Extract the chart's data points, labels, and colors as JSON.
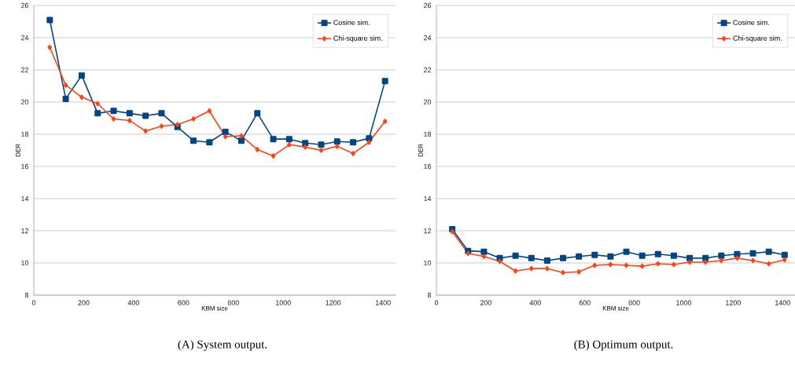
{
  "chart_data": [
    {
      "type": "line",
      "xlabel": "KBM size",
      "ylabel": "DER",
      "annotations": [
        "(A) System output."
      ],
      "x": [
        64,
        128,
        192,
        256,
        320,
        384,
        448,
        512,
        576,
        640,
        704,
        768,
        832,
        896,
        960,
        1024,
        1088,
        1152,
        1216,
        1280,
        1344,
        1408
      ],
      "series": [
        {
          "name": "Cosine sim.",
          "color": "#004586",
          "marker": "square",
          "values": [
            25.1,
            20.2,
            21.65,
            19.3,
            19.45,
            19.3,
            19.15,
            19.3,
            18.45,
            17.6,
            17.5,
            18.15,
            17.6,
            19.3,
            17.7,
            17.7,
            17.45,
            17.35,
            17.55,
            17.5,
            17.75,
            21.3
          ]
        },
        {
          "name": "Chi-square sim.",
          "color": "#ff420e",
          "marker": "diamond",
          "values": [
            23.4,
            21.05,
            20.3,
            19.9,
            18.95,
            18.85,
            18.2,
            18.5,
            18.6,
            18.95,
            19.45,
            17.85,
            17.9,
            17.05,
            16.65,
            17.35,
            17.2,
            17.0,
            17.25,
            16.8,
            17.5,
            18.8
          ]
        }
      ],
      "xlim": [
        0,
        1450
      ],
      "xticks": [
        0,
        200,
        400,
        600,
        800,
        1000,
        1200,
        1400
      ],
      "ylim": [
        8,
        26
      ],
      "yticks": [
        8,
        10,
        12,
        14,
        16,
        18,
        20,
        22,
        24,
        26
      ],
      "grid": "y",
      "legend": "top right",
      "line_style": "solid"
    },
    {
      "type": "line",
      "xlabel": "KBM size",
      "ylabel": "DER",
      "annotations": [
        "(B) Optimum output."
      ],
      "x": [
        64,
        128,
        192,
        256,
        320,
        384,
        448,
        512,
        576,
        640,
        704,
        768,
        832,
        896,
        960,
        1024,
        1088,
        1152,
        1216,
        1280,
        1344,
        1408
      ],
      "series": [
        {
          "name": "Cosine sim.",
          "color": "#004586",
          "marker": "square",
          "values": [
            12.1,
            10.75,
            10.7,
            10.3,
            10.45,
            10.3,
            10.15,
            10.3,
            10.4,
            10.5,
            10.4,
            10.7,
            10.45,
            10.55,
            10.45,
            10.3,
            10.3,
            10.45,
            10.55,
            10.6,
            10.7,
            10.5
          ]
        },
        {
          "name": "Chi-square sim.",
          "color": "#ff420e",
          "marker": "diamond",
          "values": [
            11.95,
            10.6,
            10.4,
            10.1,
            9.5,
            9.65,
            9.65,
            9.4,
            9.45,
            9.85,
            9.9,
            9.85,
            9.8,
            9.95,
            9.9,
            10.05,
            10.05,
            10.15,
            10.3,
            10.15,
            9.95,
            10.2
          ]
        }
      ],
      "xlim": [
        0,
        1450
      ],
      "xticks": [
        0,
        200,
        400,
        600,
        800,
        1000,
        1200,
        1400
      ],
      "ylim": [
        8,
        26
      ],
      "yticks": [
        8,
        10,
        12,
        14,
        16,
        18,
        20,
        22,
        24,
        26
      ],
      "grid": "y",
      "legend": "top right",
      "line_style": "solid"
    }
  ]
}
